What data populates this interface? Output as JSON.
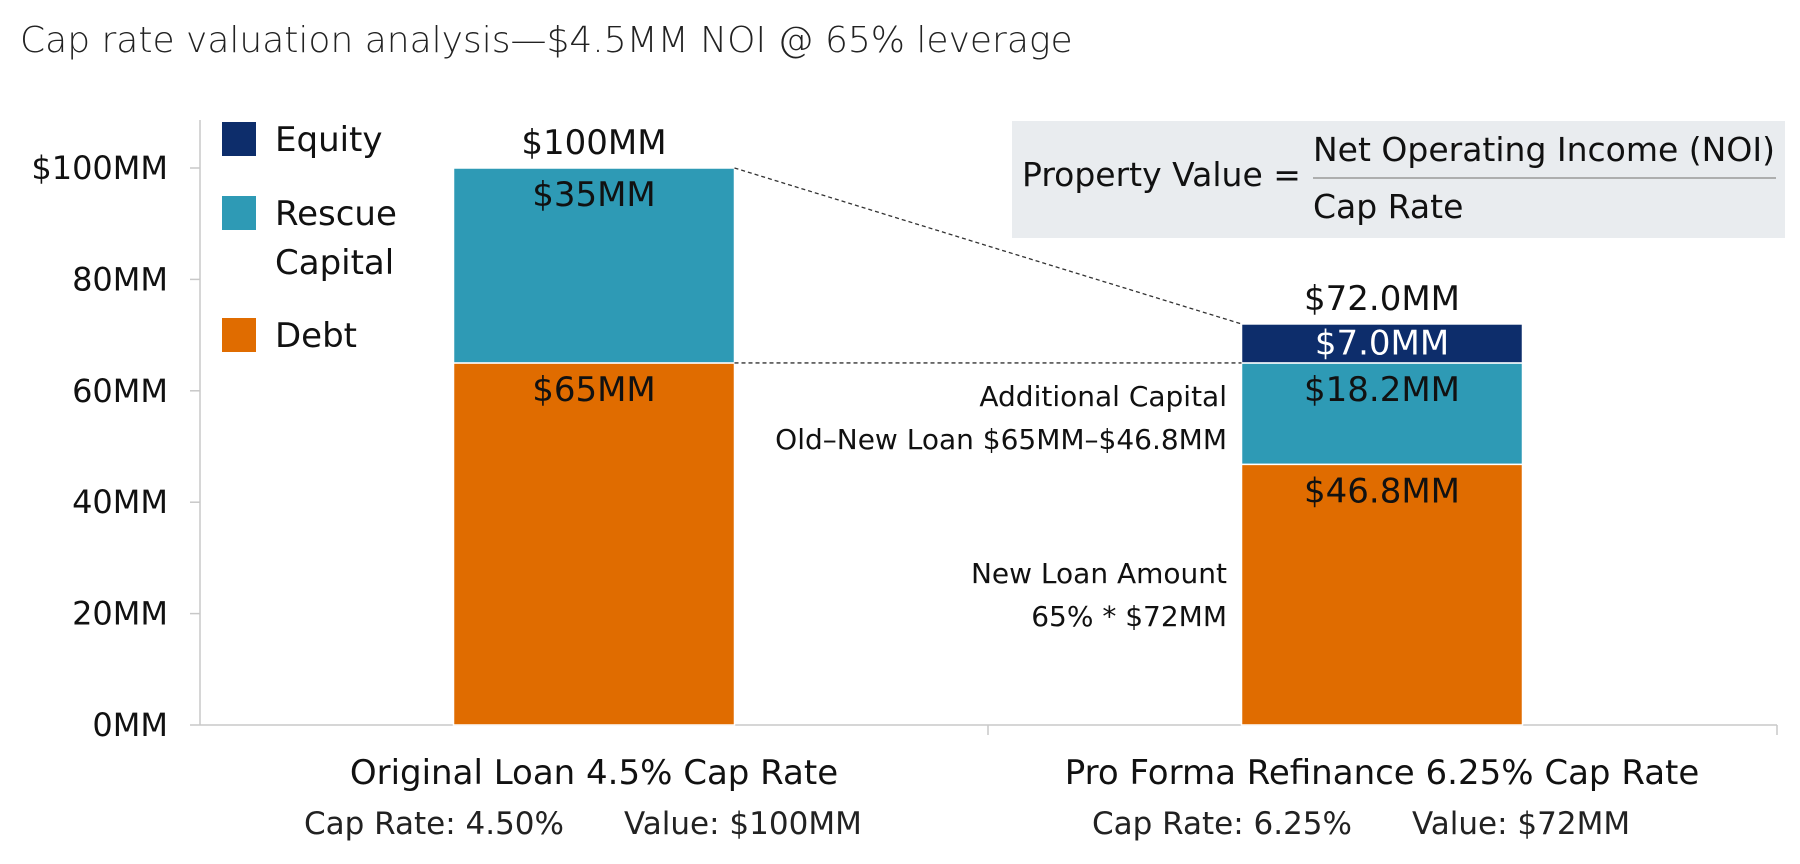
{
  "chart_data": {
    "type": "bar",
    "stacked": true,
    "title": "Cap rate valuation analysis—$4.5MM NOI @ 65% leverage",
    "ylim": [
      0,
      100
    ],
    "yticks": [
      {
        "value": 0,
        "label": "0MM"
      },
      {
        "value": 20,
        "label": "20MM"
      },
      {
        "value": 40,
        "label": "40MM"
      },
      {
        "value": 60,
        "label": "60MM"
      },
      {
        "value": 80,
        "label": "80MM"
      },
      {
        "value": 100,
        "label": "$100MM"
      }
    ],
    "grid": false,
    "legend_position": "top-left",
    "legend": [
      {
        "key": "equity",
        "lines": [
          "Equity"
        ],
        "color": "#0d2d6b"
      },
      {
        "key": "rescue",
        "lines": [
          "Rescue",
          "Capital"
        ],
        "color": "#2e9ab5"
      },
      {
        "key": "debt",
        "lines": [
          "Debt"
        ],
        "color": "#e06c00"
      }
    ],
    "categories": [
      {
        "label": "Original Loan 4.5% Cap Rate",
        "sub1": "Cap Rate: 4.50%",
        "sub2": "Value: $100MM",
        "total_label": "$100MM"
      },
      {
        "label": "Pro Forma Refinance 6.25% Cap Rate",
        "sub1": "Cap Rate: 6.25%",
        "sub2": "Value: $72MM",
        "total_label": "$72.0MM"
      }
    ],
    "series": [
      {
        "key": "debt",
        "color": "#e06c00",
        "values": [
          65,
          46.8
        ],
        "labels": [
          "$65MM",
          "$46.8MM"
        ],
        "label_color": "#111111"
      },
      {
        "key": "rescue",
        "color": "#2e9ab5",
        "values": [
          35,
          18.2
        ],
        "labels": [
          "$35MM",
          "$18.2MM"
        ],
        "label_color": "#111111"
      },
      {
        "key": "equity",
        "color": "#0d2d6b",
        "values": [
          0,
          7.0
        ],
        "labels": [
          "",
          "$7.0MM"
        ],
        "label_color": "#ffffff"
      }
    ],
    "annotations": [
      {
        "lines": [
          "Additional Capital",
          "Old–New Loan $65MM–$46.8MM"
        ],
        "anchor_value": 65
      },
      {
        "lines": [
          "New Loan Amount",
          "65% * $72MM"
        ],
        "anchor_value": 27
      }
    ],
    "formula": {
      "lhs": "Property Value =",
      "numerator": "Net Operating Income (NOI)",
      "denominator": "Cap Rate"
    }
  }
}
